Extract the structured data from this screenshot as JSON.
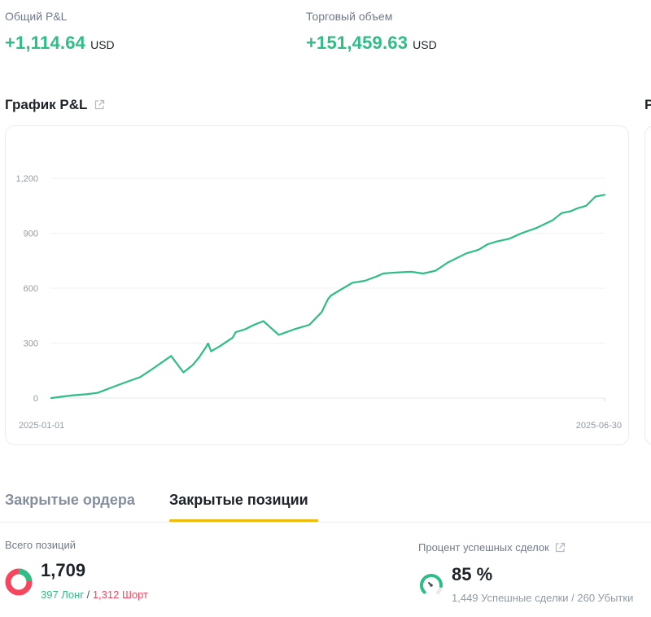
{
  "summary": {
    "total_pnl": {
      "label": "Общий P&L",
      "value": "+1,114.64",
      "unit": "USD"
    },
    "trade_volume": {
      "label": "Торговый объем",
      "value": "+151,459.63",
      "unit": "USD"
    }
  },
  "pnl_chart": {
    "title": "График P&L",
    "next_section_fragment": "P",
    "colors": {
      "line": "#2ebd85",
      "grid": "#f0f1f2",
      "axis_text": "#929aa5"
    }
  },
  "chart_data": {
    "type": "line",
    "title": "",
    "xlabel": "",
    "ylabel": "",
    "x_range": [
      "2025-01-01",
      "2025-06-30"
    ],
    "x_tick_labels": [
      "2025-01-01",
      "2025-06-30"
    ],
    "y_ticks": [
      "0",
      "300",
      "600",
      "900",
      "1,200"
    ],
    "ylim": [
      0,
      1200
    ],
    "grid": true,
    "legend": "none",
    "series": [
      {
        "x": [
          "2025-01-01",
          "2025-01-08",
          "2025-01-12",
          "2025-01-16",
          "2025-01-21",
          "2025-01-25",
          "2025-01-30",
          "2025-02-03",
          "2025-02-09",
          "2025-02-13",
          "2025-02-16",
          "2025-02-18",
          "2025-02-20",
          "2025-02-21",
          "2025-02-22",
          "2025-02-25",
          "2025-03-01",
          "2025-03-02",
          "2025-03-05",
          "2025-03-08",
          "2025-03-11",
          "2025-03-16",
          "2025-03-21",
          "2025-03-26",
          "2025-03-30",
          "2025-04-01",
          "2025-04-02",
          "2025-04-06",
          "2025-04-09",
          "2025-04-13",
          "2025-04-17",
          "2025-04-19",
          "2025-04-21",
          "2025-04-23",
          "2025-04-28",
          "2025-05-02",
          "2025-05-06",
          "2025-05-10",
          "2025-05-16",
          "2025-05-20",
          "2025-05-23",
          "2025-05-26",
          "2025-05-30",
          "2025-06-03",
          "2025-06-08",
          "2025-06-13",
          "2025-06-16",
          "2025-06-19",
          "2025-06-21",
          "2025-06-24",
          "2025-06-27",
          "2025-06-30"
        ],
        "y": [
          0,
          15,
          20,
          28,
          60,
          85,
          115,
          160,
          230,
          140,
          180,
          220,
          270,
          298,
          255,
          285,
          330,
          360,
          375,
          400,
          420,
          345,
          375,
          400,
          470,
          540,
          560,
          600,
          630,
          640,
          665,
          680,
          683,
          685,
          690,
          680,
          695,
          740,
          790,
          810,
          840,
          855,
          870,
          900,
          930,
          970,
          1010,
          1020,
          1035,
          1050,
          1100,
          1110
        ]
      }
    ]
  },
  "tabs": [
    {
      "label": "Закрытые ордера",
      "active": false
    },
    {
      "label": "Закрытые позиции",
      "active": true
    }
  ],
  "positions": {
    "label": "Всего позиций",
    "total": "1,709",
    "long": "397 Лонг",
    "separator": " / ",
    "short": "1,312 Шорт",
    "long_fraction": 0.232
  },
  "win_rate": {
    "label": "Процент успешных сделок",
    "value": "85 %",
    "successful": "1,449 Успешные сделки",
    "separator": " / ",
    "losing": "260 Убытки",
    "fraction": 0.85
  }
}
